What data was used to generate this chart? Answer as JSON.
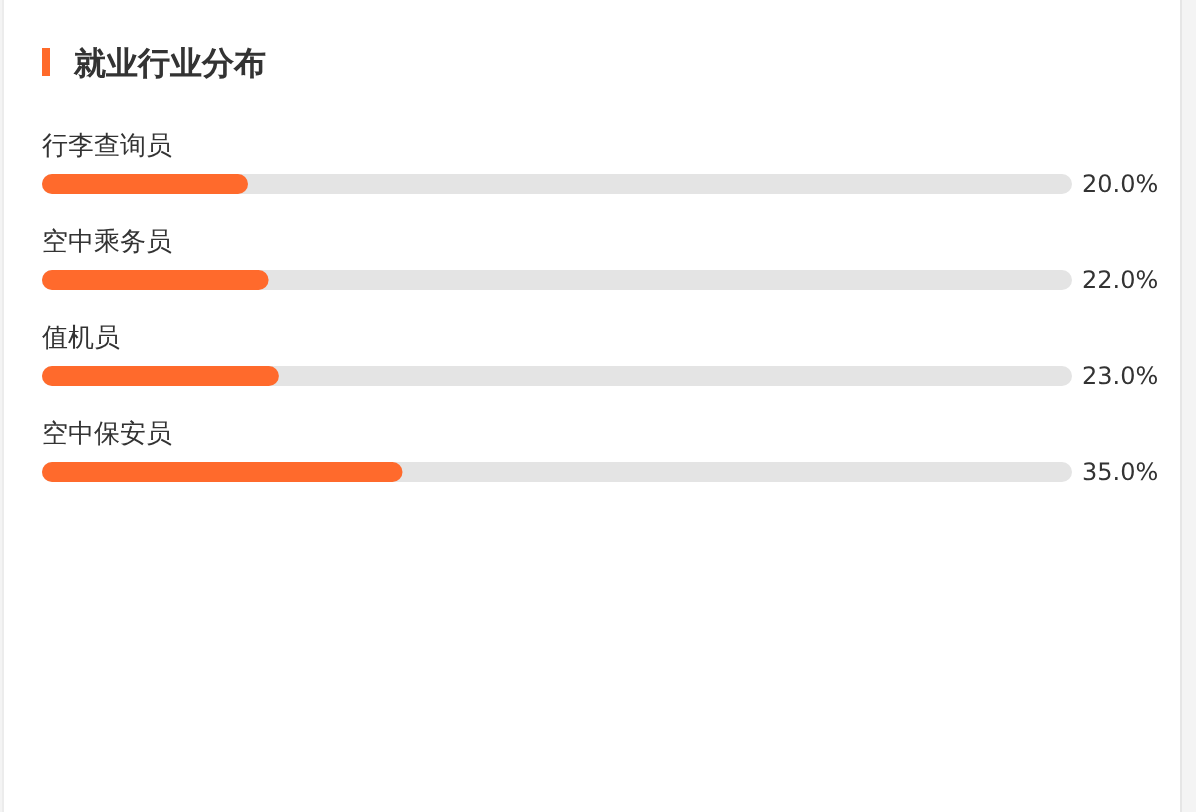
{
  "chart_data": {
    "type": "bar",
    "orientation": "horizontal",
    "title": "就业行业分布",
    "categories": [
      "行李查询员",
      "空中乘务员",
      "值机员",
      "空中保安员"
    ],
    "values": [
      20,
      22,
      23,
      35
    ],
    "value_labels": [
      "20.0%",
      "22.0%",
      "23.0%",
      "35.0%"
    ],
    "color": "#ff6a2c",
    "xlim": [
      0,
      100
    ],
    "tick_labels": "y"
  }
}
